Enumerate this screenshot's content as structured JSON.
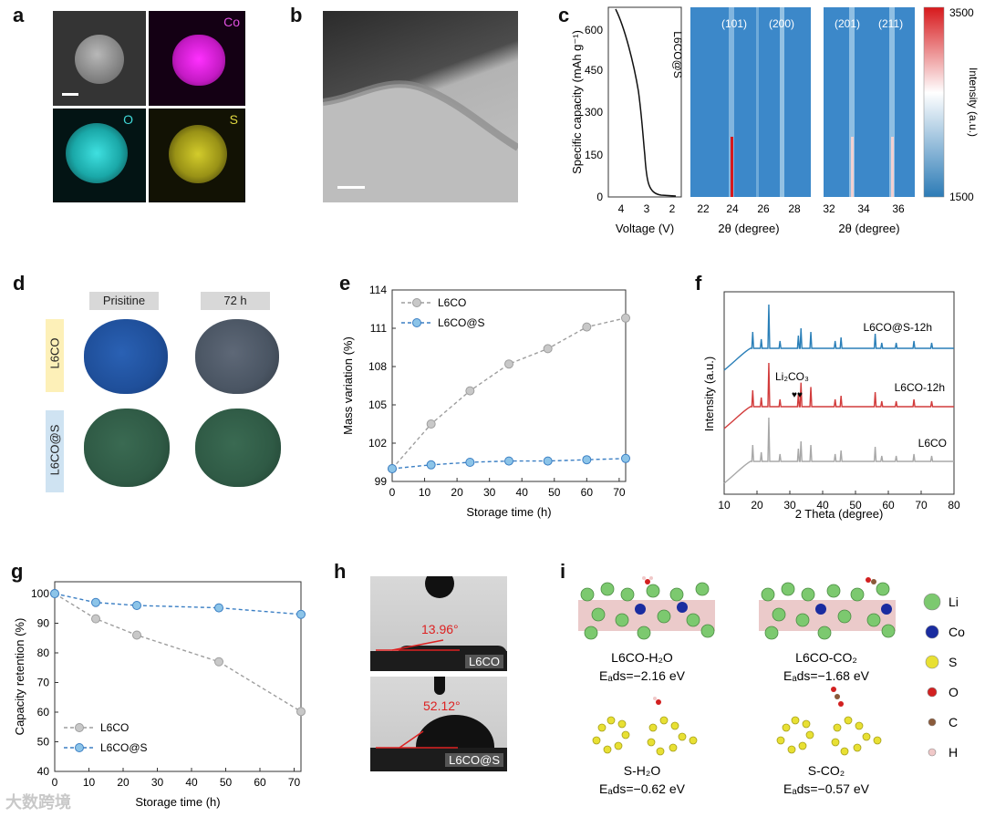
{
  "panel_labels": {
    "a": "a",
    "b": "b",
    "c": "c",
    "d": "d",
    "e": "e",
    "f": "f",
    "g": "g",
    "h": "h",
    "i": "i"
  },
  "panel_a": {
    "tags": {
      "co": "Co",
      "o": "O",
      "s": "S"
    }
  },
  "panel_c": {
    "side_label": "L6CO@S",
    "ylabel_left": "Specific capacity (mAh g⁻¹)",
    "yticks": [
      "600",
      "450",
      "300",
      "150",
      "0"
    ],
    "xlabel_voltage": "Voltage (V)",
    "xticks_voltage": [
      "4",
      "3",
      "2"
    ],
    "xlabel_theta1": "2θ (degree)",
    "xticks_theta1": [
      "22",
      "24",
      "26",
      "28"
    ],
    "xlabel_theta2": "2θ (degree)",
    "xticks_theta2": [
      "32",
      "34",
      "36"
    ],
    "peaks_map1": [
      "(101)",
      "(200)"
    ],
    "peaks_map2": [
      "(201)",
      "(211)"
    ],
    "colorbar_title": "Intensity (a.u.)",
    "colorbar_max": "3500",
    "colorbar_min": "1500",
    "colors": {
      "high": "#d7191c",
      "mid": "#ffffff",
      "low": "#2c7bb6"
    }
  },
  "panel_d": {
    "col_pristine": "Prisitine",
    "col_72h": "72 h",
    "row_l6co": "L6CO",
    "row_l6cos": "L6CO@S",
    "colors": {
      "l6co_pristine": "#1f4f9a",
      "l6co_72h": "#4a5563",
      "l6cos": "#2f5a45",
      "tag_yellow": "#fdf0b8",
      "tag_blue": "#cfe3f2",
      "tag_grey": "#d8d8d8"
    }
  },
  "panel_h": {
    "angle_top": "13.96°",
    "label_top": "L6CO",
    "angle_bottom": "52.12°",
    "label_bottom": "L6CO@S"
  },
  "panel_i": {
    "l6co_h2o": "L6CO-H₂O",
    "l6co_h2o_e": "Eₐds=−2.16 eV",
    "l6co_co2": "L6CO-CO₂",
    "l6co_co2_e": "Eₐds=−1.68 eV",
    "s_h2o": "S-H₂O",
    "s_h2o_e": "Eₐds=−0.62 eV",
    "s_co2": "S-CO₂",
    "s_co2_e": "Eₐds=−0.57 eV",
    "legend": [
      {
        "label": "Li",
        "color": "#7cc96f"
      },
      {
        "label": "Co",
        "color": "#1a2ca0"
      },
      {
        "label": "S",
        "color": "#e8e033"
      },
      {
        "label": "O",
        "color": "#d22020"
      },
      {
        "label": "C",
        "color": "#8a5a3a"
      },
      {
        "label": "H",
        "color": "#f0c8c8"
      }
    ]
  },
  "watermark": "大数跨境",
  "chart_data": [
    {
      "id": "panel-e",
      "type": "line",
      "title": "",
      "xlabel": "Storage time (h)",
      "ylabel": "Mass variation (%)",
      "xlim": [
        0,
        72
      ],
      "ylim": [
        99,
        114
      ],
      "xticks": [
        0,
        10,
        20,
        30,
        40,
        50,
        60,
        70
      ],
      "yticks": [
        102,
        105,
        108,
        111,
        114
      ],
      "ytick_labels": [
        "102",
        "105",
        "108",
        "111",
        "114"
      ],
      "extra_ytick": "99",
      "legend_position": "top-left",
      "series": [
        {
          "name": "L6CO",
          "color": "#9e9e9e",
          "x": [
            0,
            12,
            24,
            36,
            48,
            60,
            72
          ],
          "values": [
            100.0,
            103.5,
            106.1,
            108.2,
            109.4,
            111.1,
            111.8
          ]
        },
        {
          "name": "L6CO@S",
          "color": "#3b7fc4",
          "x": [
            0,
            12,
            24,
            36,
            48,
            60,
            72
          ],
          "values": [
            100.0,
            100.3,
            100.5,
            100.6,
            100.6,
            100.7,
            100.8
          ]
        }
      ]
    },
    {
      "id": "panel-f",
      "type": "line",
      "title": "",
      "xlabel": "2 Theta (degree)",
      "ylabel": "Intensity (a.u.)",
      "xlim": [
        10,
        80
      ],
      "xticks": [
        10,
        20,
        30,
        40,
        50,
        60,
        70,
        80
      ],
      "series": [
        {
          "name": "L6CO@S-12h",
          "color": "#2a7fb8"
        },
        {
          "name": "L6CO-12h",
          "color": "#d23c3c"
        },
        {
          "name": "L6CO",
          "color": "#a8a8a8"
        }
      ],
      "annotation": "Li₂CO₃"
    },
    {
      "id": "panel-g",
      "type": "line",
      "title": "",
      "xlabel": "Storage time (h)",
      "ylabel": "Capacity retention (%)",
      "xlim": [
        0,
        72
      ],
      "ylim": [
        40,
        104
      ],
      "xticks": [
        0,
        10,
        20,
        30,
        40,
        50,
        60,
        70
      ],
      "yticks": [
        40,
        50,
        60,
        70,
        80,
        90,
        100
      ],
      "legend_position": "bottom-left",
      "series": [
        {
          "name": "L6CO",
          "color": "#9e9e9e",
          "x": [
            0,
            12,
            24,
            48,
            72
          ],
          "values": [
            100.0,
            91.5,
            86.0,
            77.0,
            60.2
          ]
        },
        {
          "name": "L6CO@S",
          "color": "#3b7fc4",
          "x": [
            0,
            12,
            24,
            48,
            72
          ],
          "values": [
            100.0,
            97.0,
            96.0,
            95.2,
            93.0
          ]
        }
      ]
    }
  ]
}
